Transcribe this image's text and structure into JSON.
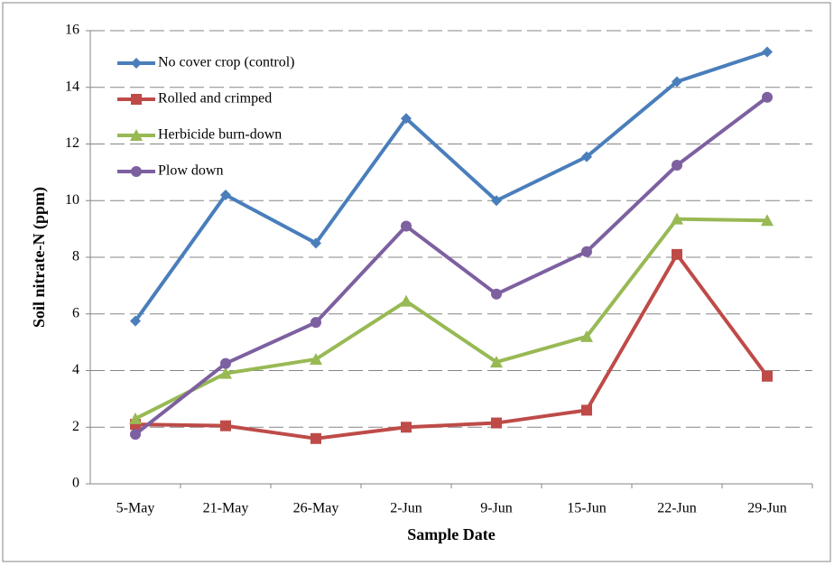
{
  "chart_data": {
    "type": "line",
    "x_label": "Sample Date",
    "y_label": "Soil nitrate-N (ppm)",
    "categories": [
      "5-May",
      "21-May",
      "26-May",
      "2-Jun",
      "9-Jun",
      "15-Jun",
      "22-Jun",
      "29-Jun"
    ],
    "series": [
      {
        "name": "No cover crop (control)",
        "color": "#4a7ebb",
        "marker": "diamond",
        "values": [
          5.75,
          10.2,
          8.5,
          12.9,
          10,
          11.55,
          14.2,
          15.25
        ]
      },
      {
        "name": "Rolled and crimped",
        "color": "#be4b48",
        "marker": "square",
        "values": [
          2.1,
          2.05,
          1.6,
          2.0,
          2.15,
          2.6,
          8.1,
          3.8
        ]
      },
      {
        "name": "Herbicide burn-down",
        "color": "#98b954",
        "marker": "triangle",
        "values": [
          2.3,
          3.9,
          4.4,
          6.45,
          4.3,
          5.2,
          9.35,
          9.3
        ]
      },
      {
        "name": "Plow down",
        "color": "#7d60a0",
        "marker": "circle",
        "values": [
          1.75,
          4.25,
          5.7,
          9.1,
          6.7,
          8.2,
          11.25,
          13.65
        ]
      }
    ],
    "ylim": [
      0,
      16
    ],
    "yticks": [
      0,
      2,
      4,
      6,
      8,
      10,
      12,
      14,
      16
    ],
    "grid": true,
    "legend": "upper-left"
  }
}
